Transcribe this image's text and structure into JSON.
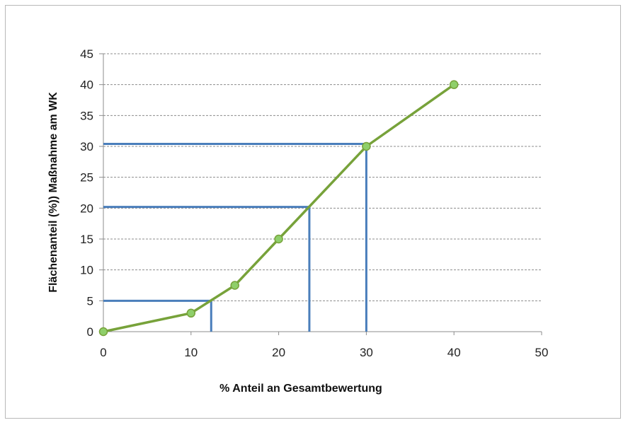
{
  "chart_data": {
    "type": "line",
    "title": "",
    "xlabel": "% Anteil an Gesamtbewertung",
    "ylabel": "Flächenanteil (%)) Maßnahme am WK",
    "xlim": [
      0,
      50
    ],
    "ylim": [
      0,
      45
    ],
    "x_ticks": [
      "0",
      "10",
      "20",
      "30",
      "40",
      "50"
    ],
    "y_ticks": [
      "0",
      "5",
      "10",
      "15",
      "20",
      "25",
      "30",
      "35",
      "40",
      "45"
    ],
    "grid": true,
    "legend": "none",
    "series": [
      {
        "x": [
          0,
          10,
          15,
          20,
          30,
          40
        ],
        "y": [
          0,
          3,
          7.5,
          15,
          30,
          40
        ],
        "color": "#77a23a",
        "marker_color": "#8fcf6a"
      }
    ],
    "reference_lines": [
      {
        "x": 12.3,
        "y": 5
      },
      {
        "x": 23.5,
        "y": 20.2
      },
      {
        "x": 30,
        "y": 30.4
      }
    ],
    "reference_line_color": "#4a7ebb"
  }
}
